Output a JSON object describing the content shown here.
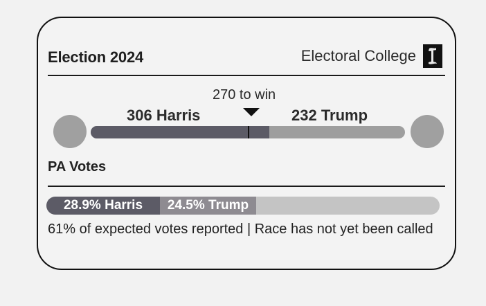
{
  "header": {
    "title": "Election 2024",
    "subtitle": "Electoral College",
    "logo_icon": "newspaper-logo-icon"
  },
  "electoral": {
    "win_label": "270 to win",
    "win_threshold": 270,
    "total": 538,
    "harris": {
      "label": "306 Harris",
      "votes": 306
    },
    "trump": {
      "label": "232 Trump",
      "votes": 232
    }
  },
  "pa": {
    "title": "PA Votes",
    "harris": {
      "label": "28.9% Harris",
      "pct": 28.9
    },
    "trump": {
      "label": "24.5% Trump",
      "pct": 24.5
    },
    "footnote": "61% of expected votes reported | Race has not yet been called"
  },
  "colors": {
    "harris": "#5c5b66",
    "trump_ec": "#9e9e9e",
    "trump_pa": "#8e8b91",
    "remaining": "#c4c4c4",
    "avatar": "#a0a0a0"
  }
}
